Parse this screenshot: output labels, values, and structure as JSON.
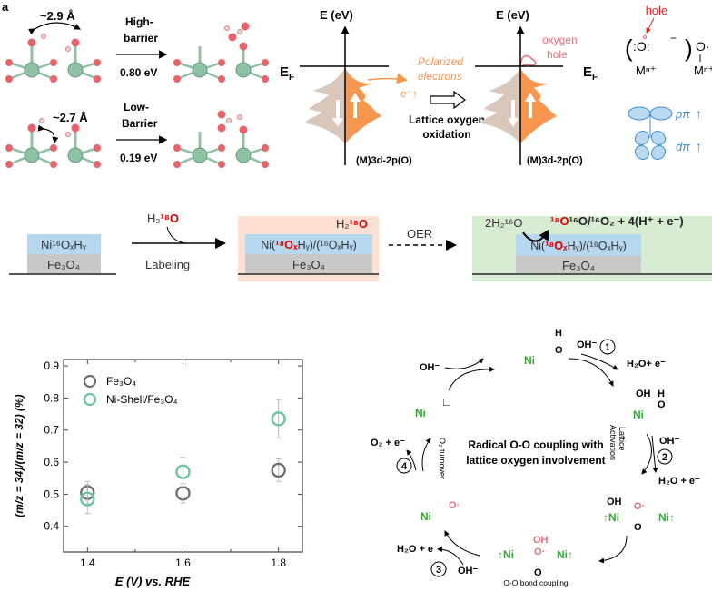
{
  "panel_labels": {
    "a": "a"
  },
  "panel_a": {
    "distance_top": "~2.9 Å",
    "distance_bottom": "~2.7 Å",
    "top_barrier_line1": "High-",
    "top_barrier_line2": "barrier",
    "top_energy": "0.80 eV",
    "bottom_barrier_line1": "Low-",
    "bottom_barrier_line2": "Barrier",
    "bottom_energy": "0.19 eV"
  },
  "panel_b": {
    "axis_label_left": "E (eV)",
    "axis_label_right": "E (eV)",
    "fermi_left": "E",
    "fermi_right": "E",
    "fermi_sub": "F",
    "polarized_line1": "Polarized",
    "polarized_line2": "electrons",
    "electron_label": "e⁻↑",
    "process_line1": "Lattice oxygen",
    "process_line2": "oxidation",
    "oxygen_hole_line1": "oxygen",
    "oxygen_hole_line2": "hole",
    "dos_label_left": "(M)3d-2p(O)",
    "dos_label_right": "(M)3d-2p(O)",
    "colors": {
      "spin_down": "#d9c7bb",
      "spin_up": "#f6964f",
      "hole": "#e8707f"
    }
  },
  "panel_c": {
    "hole_label": "hole",
    "oxygen_left": ":O:",
    "charge": "−",
    "metal_left": "Mⁿ⁺",
    "oxygen_right": "O·",
    "metal_right": "Mⁿ⁺",
    "p_orbital": "pπ",
    "d_orbital": "dπ",
    "colors": {
      "orbital": "#3d8fd1",
      "hole": "#e02020"
    }
  },
  "panel_labeling": {
    "step1_shell": "Ni¹⁶OₓHᵧ",
    "step1_core": "Fe₃O₄",
    "reagent_prefix": "H₂",
    "reagent_isotope": "¹⁸O",
    "labeling_label": "Labeling",
    "step2_reagent_prefix": "H₂",
    "step2_reagent_isotope": "¹⁸O",
    "step2_shell_a": "Ni(",
    "step2_shell_b": "¹⁸Oₓ",
    "step2_shell_c": "Hᵧ)/(¹⁶OₓHᵧ)",
    "step2_core": "Fe₃O₄",
    "oer_label": "OER",
    "step3_water": "2H₂¹⁶O",
    "step3_product_red": "¹⁸O",
    "step3_product_rest": "¹⁶O/¹⁶O₂ + 4(H⁺ + e⁻)",
    "step3_shell_a": "Ni(",
    "step3_shell_b": "¹⁸Oₓ",
    "step3_shell_c": "Hᵧ)/(¹⁶OₓHᵧ)",
    "step3_core": "Fe₃O₄",
    "colors": {
      "shell": "#b7d7ef",
      "core": "#c8c8c8",
      "labeled_bg": "#fbe0d3",
      "oer_bg": "#d8ecd4",
      "isotope": "#e00000"
    }
  },
  "chart_data": {
    "type": "scatter",
    "xlabel": "E (V) vs. RHE",
    "ylabel": "(m/z = 34)/(m/z = 32) (%)",
    "xlim": [
      1.35,
      1.85
    ],
    "ylim": [
      0.32,
      0.92
    ],
    "xticks": [
      "1.4",
      "1.6",
      "1.8"
    ],
    "yticks": [
      "0.4",
      "0.5",
      "0.6",
      "0.7",
      "0.8",
      "0.9"
    ],
    "legend_position": "top-left",
    "grid": false,
    "series": [
      {
        "name": "Fe₃O₄",
        "color": "#707070",
        "x": [
          1.4,
          1.6,
          1.8
        ],
        "y": [
          0.505,
          0.503,
          0.575
        ],
        "error": [
          0.035,
          0.03,
          0.035
        ]
      },
      {
        "name": "Ni-Shell/Fe₃O₄",
        "color": "#6cc3a5",
        "x": [
          1.4,
          1.6,
          1.8
        ],
        "y": [
          0.485,
          0.57,
          0.735
        ],
        "error": [
          0.045,
          0.045,
          0.06
        ]
      }
    ]
  },
  "panel_d": {
    "center_line1": "Radical O-O coupling with",
    "center_line2": "lattice oxygen involvement",
    "ni": "Ni",
    "oh_minus": "OH⁻",
    "h2o_e": "H₂O+ e⁻",
    "h2o_e2": "H₂O + e⁻",
    "o2_e": "O₂ + e⁻",
    "oh": "OH",
    "h": "H",
    "o": "O",
    "o_radical": "O·",
    "vacancy": "□",
    "up": "↑",
    "step1": "1",
    "step2": "2",
    "step3": "3",
    "step4": "4",
    "lattice_activation_1": "Lattice",
    "lattice_activation_2": "Activation",
    "o2_turnover": "O₂ turnover",
    "oo_coupling": "O-O bond coupling",
    "colors": {
      "ni": "#3aa63a",
      "radical": "#e8707f"
    }
  }
}
